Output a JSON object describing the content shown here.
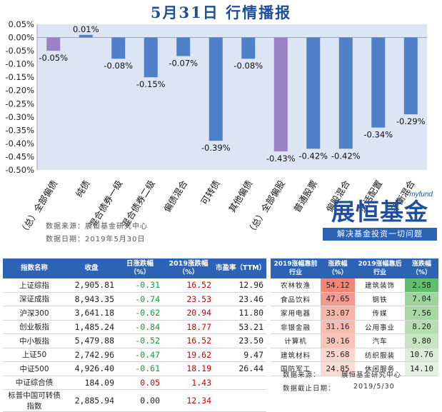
{
  "title": "5月31日  行情播报",
  "chart_data": {
    "type": "bar",
    "categories": [
      "（总）全部偏债",
      "纯债",
      "混合债券一级",
      "混合债券二级",
      "偏债混合",
      "可转债",
      "其他偏债",
      "（总）全部偏股",
      "普通股票",
      "偏股混合",
      "灵活配置",
      "平衡混合"
    ],
    "values": [
      -0.05,
      0.01,
      -0.08,
      -0.15,
      -0.07,
      -0.39,
      -0.08,
      -0.43,
      -0.42,
      -0.42,
      -0.34,
      -0.29
    ],
    "value_labels": [
      "-0.05%",
      "0.01%",
      "-0.08%",
      "-0.15%",
      "-0.07%",
      "-0.39%",
      "-0.08%",
      "-0.43%",
      "-0.42%",
      "-0.42%",
      "-0.34%",
      "-0.29%"
    ],
    "highlight_colors": {
      "0": "#9a82c6",
      "7": "#9a82c6"
    },
    "bar_color": "#4f80c8",
    "plot_bg": "#dbe5f4",
    "ylim": [
      -0.5,
      0.05
    ],
    "yticks": [
      0.05,
      0.0,
      -0.05,
      -0.1,
      -0.15,
      -0.2,
      -0.25,
      -0.3,
      -0.35,
      -0.4,
      -0.45,
      -0.5
    ],
    "ytick_labels": [
      "0.05%",
      "0.00%",
      "-0.05%",
      "-0.10%",
      "-0.15%",
      "-0.20%",
      "-0.25%",
      "-0.30%",
      "-0.35%",
      "-0.40%",
      "-0.45%",
      "-0.50%"
    ],
    "grid": false,
    "legend": "none"
  },
  "chart_source": {
    "line1": "数据来源：展恒基金研究中心",
    "line2": "数据日期：2019年5月30日"
  },
  "logo": {
    "small": "myfund",
    "big": "展恒基金",
    "tagline": "解决基金投资一切问题"
  },
  "index_table": {
    "headers": [
      "指数名称",
      "收盘",
      "日涨跌幅（%）",
      "2019涨跌幅（%）",
      "市盈率（TTM）"
    ],
    "rows": [
      {
        "name": "上证综指",
        "close": "2,905.81",
        "day": "-0.31",
        "ytd": "16.52",
        "pe": "12.96"
      },
      {
        "name": "深证成指",
        "close": "8,943.35",
        "day": "-0.74",
        "ytd": "23.53",
        "pe": "23.46"
      },
      {
        "name": "沪深300",
        "close": "3,641.18",
        "day": "-0.62",
        "ytd": "20.94",
        "pe": "11.80"
      },
      {
        "name": "创业板指",
        "close": "1,485.24",
        "day": "-0.84",
        "ytd": "18.77",
        "pe": "53.21"
      },
      {
        "name": "中小板指",
        "close": "5,479.88",
        "day": "-0.52",
        "ytd": "16.52",
        "pe": "23.50"
      },
      {
        "name": "上证50",
        "close": "2,742.96",
        "day": "-0.47",
        "ytd": "19.62",
        "pe": "9.47"
      },
      {
        "name": "中证500",
        "close": "4,926.40",
        "day": "-0.61",
        "ytd": "18.19",
        "pe": "26.44"
      },
      {
        "name": "中证综合债",
        "close": "184.09",
        "day": "0.05",
        "ytd": "1.43",
        "pe": ""
      },
      {
        "name": "标普中国可转债指数",
        "close": "2,885.94",
        "day": "0.00",
        "ytd": "12.34",
        "pe": ""
      }
    ]
  },
  "industry_table": {
    "headers": [
      "2019涨幅靠前行业",
      "涨跌幅（%）",
      "2019涨幅靠后行业",
      "涨跌幅（%）"
    ],
    "rows": [
      {
        "top": "农林牧渔",
        "top_v": "54.12",
        "bot": "建筑装饰",
        "bot_v": "2.58"
      },
      {
        "top": "食品饮料",
        "top_v": "47.65",
        "bot": "钢铁",
        "bot_v": "7.04"
      },
      {
        "top": "家用电器",
        "top_v": "33.07",
        "bot": "传媒",
        "bot_v": "7.56"
      },
      {
        "top": "非银金融",
        "top_v": "31.16",
        "bot": "公用事业",
        "bot_v": "8.20"
      },
      {
        "top": "计算机",
        "top_v": "30.16",
        "bot": "汽车",
        "bot_v": "9.80"
      },
      {
        "top": "建筑材料",
        "top_v": "25.68",
        "bot": "纺织服装",
        "bot_v": "10.76"
      },
      {
        "top": "国防军工",
        "top_v": "24.85",
        "bot": "休闲服务",
        "bot_v": "14.10"
      }
    ],
    "top_colors": [
      "#f0857a",
      "#f39a8f",
      "#f7b5a9",
      "#f8bcb2",
      "#f8c3b9",
      "#fad6cf",
      "#fbdcd5"
    ],
    "bot_colors": [
      "#5fbf6a",
      "#9fd49b",
      "#a8d8a3",
      "#b6deb1",
      "#c7e5c2",
      "#dcedd7",
      "#e5f1e1"
    ],
    "source_label": "数据来源：",
    "source_value": "展恒基金研究中心",
    "date_label": "数据截止日期：",
    "date_value": "2019/5/30"
  }
}
